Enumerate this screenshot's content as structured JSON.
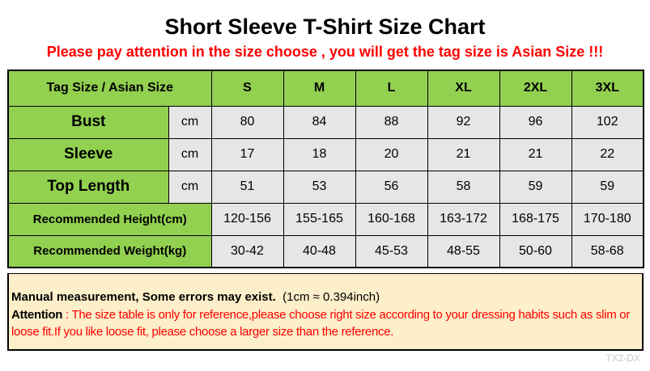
{
  "title": "Short Sleeve T-Shirt Size Chart",
  "warning": "Please pay attention in the size choose , you will get the tag size is Asian Size !!!",
  "colors": {
    "header_green": "#92d050",
    "cell_gray": "#e6e6e6",
    "note_bg": "#fdefc9",
    "warning_red": "#ff0000"
  },
  "table": {
    "header_label": "Tag Size / Asian Size",
    "sizes": [
      "S",
      "M",
      "L",
      "XL",
      "2XL",
      "3XL"
    ],
    "measure_rows": [
      {
        "label": "Bust",
        "unit": "cm",
        "values": [
          "80",
          "84",
          "88",
          "92",
          "96",
          "102"
        ]
      },
      {
        "label": "Sleeve",
        "unit": "cm",
        "values": [
          "17",
          "18",
          "20",
          "21",
          "21",
          "22"
        ]
      },
      {
        "label": "Top Length",
        "unit": "cm",
        "values": [
          "51",
          "53",
          "56",
          "58",
          "59",
          "59"
        ]
      }
    ],
    "recommend_rows": [
      {
        "label": "Recommended Height(cm)",
        "values": [
          "120-156",
          "155-165",
          "160-168",
          "163-172",
          "168-175",
          "170-180"
        ]
      },
      {
        "label": "Recommended Weight(kg)",
        "values": [
          "30-42",
          "40-48",
          "45-53",
          "48-55",
          "50-60",
          "58-68"
        ]
      }
    ]
  },
  "note": {
    "line1_bold": "Manual measurement, Some errors may exist.",
    "line1_conv": "(1cm ≈ 0.394inch)",
    "attention_label": "Attention",
    "attention_text": " : The size table is only for reference,please choose right size according to your dressing habits such as slim or loose fit.If you like loose fit, please choose a larger size than the reference."
  },
  "watermark": "TX2-DX"
}
